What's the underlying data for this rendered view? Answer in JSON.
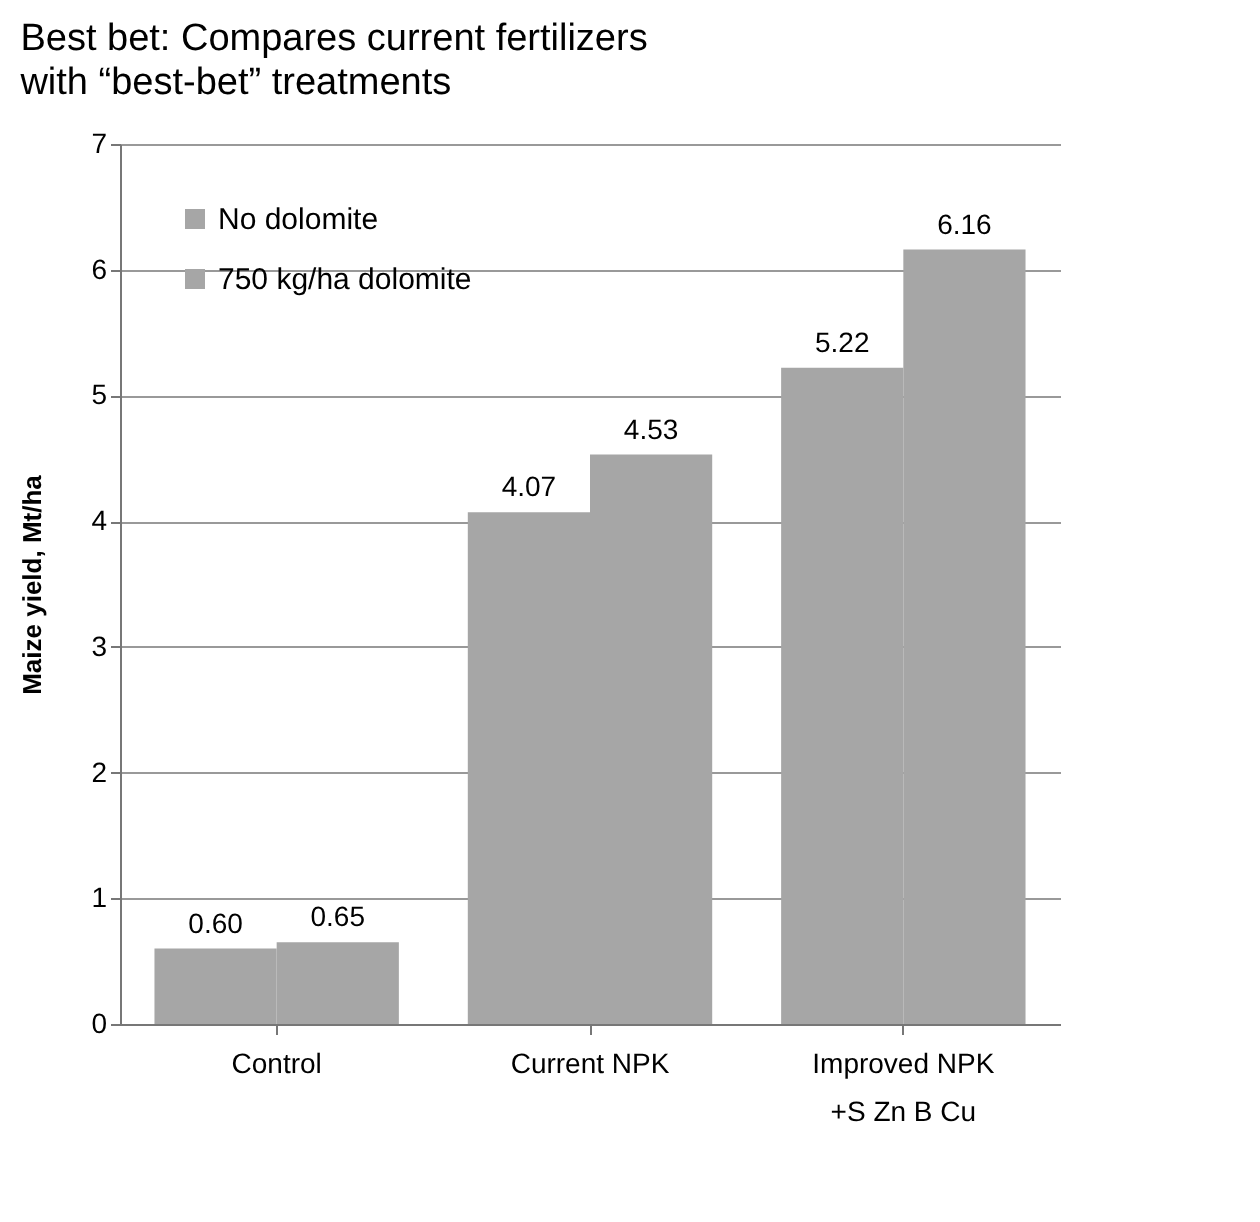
{
  "chart_data": {
    "type": "bar",
    "title": "Best bet: Compares current fertilizers with “best-bet” treatments",
    "ylabel": "Maize yield, Mt/ha",
    "categories": [
      "Control",
      "Current NPK",
      "Improved NPK\n+S Zn B Cu"
    ],
    "series": [
      {
        "name": "No dolomite",
        "color": "#a6a6a6",
        "values": [
          0.6,
          4.07,
          5.22
        ],
        "value_labels": [
          "0.60",
          "4.07",
          "5.22"
        ]
      },
      {
        "name": "750 kg/ha dolomite",
        "color": "#a6a6a6",
        "values": [
          0.65,
          4.53,
          6.16
        ],
        "value_labels": [
          "0.65",
          "4.53",
          "6.16"
        ]
      }
    ],
    "ylim": [
      0,
      7
    ],
    "yticks": [
      0,
      1,
      2,
      3,
      4,
      5,
      6,
      7
    ],
    "grid": "y",
    "legend": "top left"
  }
}
